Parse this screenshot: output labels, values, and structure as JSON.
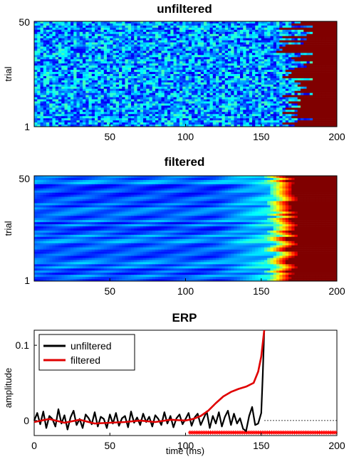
{
  "chart_data": [
    {
      "type": "heatmap",
      "title": "unfiltered",
      "xlabel": "",
      "ylabel": "trial",
      "xlim": [
        0,
        200
      ],
      "ylim": [
        1,
        50
      ],
      "x_ticks": [
        "50",
        "100",
        "150",
        "200"
      ],
      "y_ticks": [
        "1",
        "50"
      ],
      "colormap": "jet",
      "fill_after_color": "#800000",
      "fill_after_range_ms": [
        160,
        185
      ]
    },
    {
      "type": "heatmap",
      "title": "filtered",
      "xlabel": "",
      "ylabel": "trial",
      "xlim": [
        0,
        200
      ],
      "ylim": [
        1,
        50
      ],
      "x_ticks": [
        "50",
        "100",
        "150",
        "200"
      ],
      "y_ticks": [
        "1",
        "50"
      ],
      "colormap": "jet",
      "fill_after_color": "#800000",
      "fill_after_range_ms": [
        165,
        175
      ]
    },
    {
      "type": "line",
      "title": "ERP",
      "xlabel": "time (ms)",
      "ylabel": "amplitude",
      "xlim": [
        0,
        200
      ],
      "ylim": [
        -0.02,
        0.12
      ],
      "x_ticks": [
        "0",
        "50",
        "100",
        "150",
        "200"
      ],
      "y_ticks": [
        "0",
        "0.1"
      ],
      "legend_position": "top-left",
      "series": [
        {
          "name": "unfiltered",
          "color": "#000000",
          "x": [
            0,
            2,
            4,
            6,
            8,
            10,
            12,
            14,
            16,
            18,
            20,
            22,
            24,
            26,
            28,
            30,
            32,
            34,
            36,
            38,
            40,
            42,
            44,
            46,
            48,
            50,
            52,
            54,
            56,
            58,
            60,
            62,
            64,
            66,
            68,
            70,
            72,
            74,
            76,
            78,
            80,
            82,
            84,
            86,
            88,
            90,
            92,
            94,
            96,
            98,
            100,
            102,
            104,
            106,
            108,
            110,
            112,
            114,
            116,
            118,
            120,
            122,
            124,
            126,
            128,
            130,
            132,
            134,
            136,
            138,
            140,
            142,
            144,
            146,
            148,
            150,
            151,
            152
          ],
          "y": [
            0.0,
            0.01,
            -0.005,
            0.012,
            -0.01,
            0.006,
            0.002,
            -0.008,
            0.015,
            -0.004,
            0.007,
            -0.012,
            0.004,
            0.013,
            -0.006,
            0.002,
            -0.01,
            0.008,
            0.003,
            -0.005,
            0.011,
            -0.008,
            0.005,
            0.002,
            -0.01,
            0.008,
            -0.004,
            0.01,
            -0.007,
            0.003,
            0.006,
            -0.009,
            0.012,
            -0.003,
            0.004,
            -0.006,
            0.009,
            -0.002,
            0.005,
            -0.008,
            0.007,
            0.002,
            -0.006,
            0.011,
            -0.004,
            0.006,
            -0.009,
            0.003,
            0.008,
            -0.005,
            0.002,
            0.01,
            -0.007,
            0.004,
            0.009,
            -0.006,
            0.003,
            0.012,
            -0.01,
            0.006,
            -0.004,
            0.011,
            -0.008,
            0.005,
            0.013,
            -0.006,
            0.009,
            -0.004,
            0.003,
            -0.011,
            -0.014,
            0.006,
            0.018,
            -0.006,
            -0.004,
            0.01,
            0.06,
            0.12
          ]
        },
        {
          "name": "filtered",
          "color": "#e00000",
          "x": [
            0,
            10,
            20,
            30,
            40,
            50,
            60,
            70,
            80,
            90,
            100,
            105,
            110,
            115,
            120,
            125,
            130,
            135,
            140,
            145,
            148,
            150,
            152
          ],
          "y": [
            -0.002,
            0.002,
            -0.003,
            0.001,
            -0.004,
            -0.003,
            -0.002,
            0.0,
            -0.002,
            0.001,
            0.0,
            0.002,
            0.006,
            0.013,
            0.023,
            0.032,
            0.038,
            0.042,
            0.045,
            0.05,
            0.065,
            0.085,
            0.12
          ]
        }
      ],
      "marker_band": {
        "x_from": 103,
        "x_to": 200,
        "y": -0.016,
        "color": "#ff0000"
      },
      "baseline": {
        "x_from": 152,
        "x_to": 200,
        "y": 0,
        "style": "dotted"
      }
    }
  ]
}
